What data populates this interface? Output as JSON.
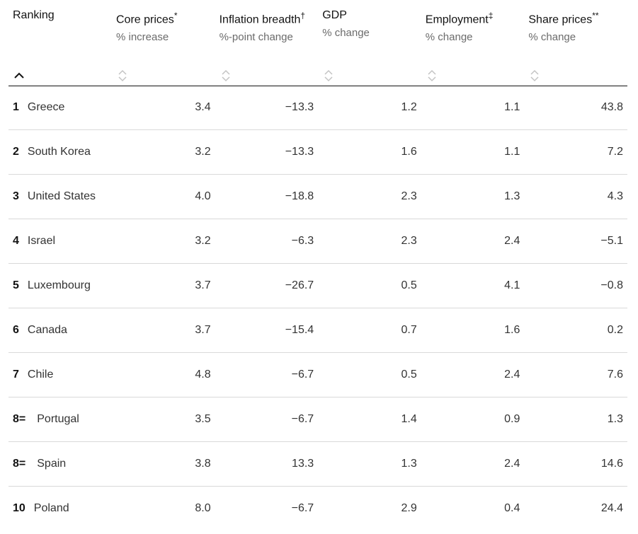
{
  "columns": [
    {
      "title": "Ranking",
      "subtitle": ""
    },
    {
      "title": "Core prices",
      "marker": "*",
      "subtitle": "% increase"
    },
    {
      "title": "Inflation breadth",
      "marker": "†",
      "subtitle": "%-point change"
    },
    {
      "title": "GDP",
      "marker": "",
      "subtitle": "% change"
    },
    {
      "title": "Employment",
      "marker": "‡",
      "subtitle": "% change"
    },
    {
      "title": "Share prices",
      "marker": "**",
      "subtitle": "% change"
    }
  ],
  "sort": {
    "active_column": "Ranking",
    "direction": "ascending",
    "icon": "chevron-up-icon",
    "inactive_icon": "sort-both-icon"
  },
  "rows": [
    {
      "rank": "1",
      "country": "Greece",
      "core": "3.4",
      "breadth": "−13.3",
      "gdp": "1.2",
      "employment": "1.1",
      "shares": "43.8"
    },
    {
      "rank": "2",
      "country": "South Korea",
      "core": "3.2",
      "breadth": "−13.3",
      "gdp": "1.6",
      "employment": "1.1",
      "shares": "7.2"
    },
    {
      "rank": "3",
      "country": "United States",
      "core": "4.0",
      "breadth": "−18.8",
      "gdp": "2.3",
      "employment": "1.3",
      "shares": "4.3"
    },
    {
      "rank": "4",
      "country": "Israel",
      "core": "3.2",
      "breadth": "−6.3",
      "gdp": "2.3",
      "employment": "2.4",
      "shares": "−5.1"
    },
    {
      "rank": "5",
      "country": "Luxembourg",
      "core": "3.7",
      "breadth": "−26.7",
      "gdp": "0.5",
      "employment": "4.1",
      "shares": "−0.8"
    },
    {
      "rank": "6",
      "country": "Canada",
      "core": "3.7",
      "breadth": "−15.4",
      "gdp": "0.7",
      "employment": "1.6",
      "shares": "0.2"
    },
    {
      "rank": "7",
      "country": "Chile",
      "core": "4.8",
      "breadth": "−6.7",
      "gdp": "0.5",
      "employment": "2.4",
      "shares": "7.6"
    },
    {
      "rank": "8=",
      "country": "Portugal",
      "core": "3.5",
      "breadth": "−6.7",
      "gdp": "1.4",
      "employment": "0.9",
      "shares": "1.3"
    },
    {
      "rank": "8=",
      "country": "Spain",
      "core": "3.8",
      "breadth": "13.3",
      "gdp": "1.3",
      "employment": "2.4",
      "shares": "14.6"
    },
    {
      "rank": "10",
      "country": "Poland",
      "core": "8.0",
      "breadth": "−6.7",
      "gdp": "2.9",
      "employment": "0.4",
      "shares": "24.4"
    }
  ]
}
